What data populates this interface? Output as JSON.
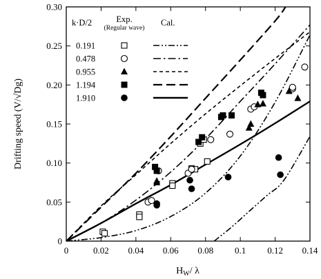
{
  "chart_data": {
    "type": "scatter",
    "xlabel": "H W/ λ",
    "xlabel_main": "H",
    "xlabel_sub": "W",
    "xlabel_rest": "/ λ",
    "ylabel": "Drifting speed (V/√Dg)",
    "xlim": [
      0,
      0.14
    ],
    "ylim": [
      0,
      0.3
    ],
    "x_ticks": [
      0,
      0.02,
      0.04,
      0.06,
      0.08,
      0.1,
      0.12,
      0.14
    ],
    "x_tick_labels": [
      "0",
      "0.02",
      "0.04",
      "0.06",
      "0.08",
      "0.1",
      "0.12",
      "0.14"
    ],
    "y_ticks": [
      0,
      0.05,
      0.1,
      0.15,
      0.2,
      0.25,
      0.3
    ],
    "y_tick_labels": [
      "0",
      "0.05",
      "0.10",
      "0.15",
      "0.20",
      "0.25",
      "0.30"
    ],
    "grid": false,
    "legend": {
      "placement": "top-left",
      "header_param": "k·D/2",
      "header_exp": "Exp.",
      "header_exp_sub": "(Regular wave)",
      "header_cal": "Cal."
    },
    "series": [
      {
        "name": "0.191",
        "marker": "open-square",
        "line": "dash-dot-dot",
        "points": [
          [
            0.021,
            0.012
          ],
          [
            0.022,
            0.01
          ],
          [
            0.042,
            0.034
          ],
          [
            0.042,
            0.031
          ],
          [
            0.061,
            0.074
          ],
          [
            0.061,
            0.071
          ],
          [
            0.072,
            0.093
          ],
          [
            0.074,
            0.092
          ],
          [
            0.077,
            0.125
          ],
          [
            0.079,
            0.13
          ],
          [
            0.081,
            0.102
          ]
        ],
        "curve": [
          [
            0,
            0
          ],
          [
            0.02,
            0.0045
          ],
          [
            0.04,
            0.0135
          ],
          [
            0.06,
            0.0315
          ],
          [
            0.08,
            0.0615
          ],
          [
            0.1,
            0.109
          ],
          [
            0.12,
            0.178
          ],
          [
            0.14,
            0.264
          ]
        ]
      },
      {
        "name": "0.478",
        "marker": "open-circle",
        "line": "long-dash-dot",
        "points": [
          [
            0.047,
            0.05
          ],
          [
            0.049,
            0.052
          ],
          [
            0.053,
            0.09
          ],
          [
            0.07,
            0.087
          ],
          [
            0.072,
            0.092
          ],
          [
            0.083,
            0.13
          ],
          [
            0.094,
            0.137
          ],
          [
            0.106,
            0.169
          ],
          [
            0.108,
            0.172
          ],
          [
            0.13,
            0.195
          ],
          [
            0.13,
            0.197
          ],
          [
            0.137,
            0.223
          ]
        ],
        "curve": [
          [
            0,
            0
          ],
          [
            0.02,
            0.023
          ],
          [
            0.04,
            0.0525
          ],
          [
            0.06,
            0.0885
          ],
          [
            0.08,
            0.131
          ],
          [
            0.1,
            0.179
          ],
          [
            0.12,
            0.227
          ],
          [
            0.14,
            0.277
          ]
        ]
      },
      {
        "name": "0.955",
        "marker": "filled-triangle",
        "line": "short-dash",
        "points": [
          [
            0.052,
            0.077
          ],
          [
            0.052,
            0.075
          ],
          [
            0.105,
            0.145
          ],
          [
            0.106,
            0.15
          ],
          [
            0.11,
            0.175
          ],
          [
            0.113,
            0.176
          ],
          [
            0.128,
            0.192
          ],
          [
            0.133,
            0.183
          ]
        ],
        "curve": [
          [
            0,
            0
          ],
          [
            0.02,
            0.045
          ],
          [
            0.04,
            0.085
          ],
          [
            0.06,
            0.125
          ],
          [
            0.08,
            0.163
          ],
          [
            0.1,
            0.199
          ],
          [
            0.12,
            0.234
          ],
          [
            0.14,
            0.268
          ]
        ]
      },
      {
        "name": "1.194",
        "marker": "filled-square",
        "line": "long-dash",
        "points": [
          [
            0.051,
            0.095
          ],
          [
            0.052,
            0.09
          ],
          [
            0.076,
            0.127
          ],
          [
            0.078,
            0.133
          ],
          [
            0.089,
            0.159
          ],
          [
            0.09,
            0.161
          ],
          [
            0.095,
            0.161
          ],
          [
            0.112,
            0.19
          ],
          [
            0.113,
            0.187
          ]
        ],
        "curve": [
          [
            0,
            0
          ],
          [
            0.02,
            0.0435
          ],
          [
            0.04,
            0.087
          ],
          [
            0.06,
            0.134
          ],
          [
            0.08,
            0.183
          ],
          [
            0.1,
            0.232
          ],
          [
            0.12,
            0.282
          ],
          [
            0.126,
            0.3
          ]
        ]
      },
      {
        "name": "1.910",
        "marker": "filled-circle",
        "line": "solid",
        "points": [
          [
            0.052,
            0.048
          ],
          [
            0.052,
            0.046
          ],
          [
            0.071,
            0.078
          ],
          [
            0.072,
            0.067
          ],
          [
            0.093,
            0.082
          ],
          [
            0.122,
            0.107
          ],
          [
            0.123,
            0.085
          ]
        ],
        "curve": [
          [
            0,
            0
          ],
          [
            0.02,
            0.023
          ],
          [
            0.04,
            0.048
          ],
          [
            0.06,
            0.072
          ],
          [
            0.08,
            0.098
          ],
          [
            0.1,
            0.124
          ],
          [
            0.12,
            0.151
          ],
          [
            0.14,
            0.179
          ]
        ]
      },
      {
        "name": "",
        "marker": "none",
        "line": "dash-dot-dot",
        "points": [],
        "curve": [
          [
            0.085,
            0
          ],
          [
            0.095,
            0.018
          ],
          [
            0.105,
            0.038
          ],
          [
            0.115,
            0.058
          ],
          [
            0.125,
            0.078
          ],
          [
            0.14,
            0.134
          ]
        ]
      }
    ]
  }
}
